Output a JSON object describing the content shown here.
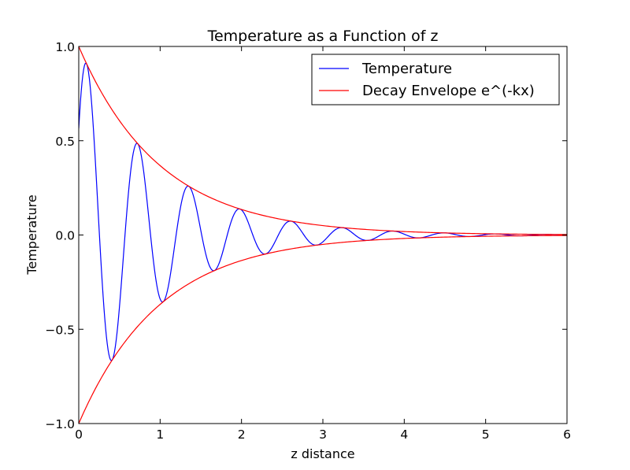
{
  "chart_data": {
    "type": "line",
    "title": "Temperature as a Function of z",
    "xlabel": "z distance",
    "ylabel": "Temperature",
    "xlim": [
      0,
      6
    ],
    "ylim": [
      -1.0,
      1.0
    ],
    "xticks": [
      0,
      1,
      2,
      3,
      4,
      5,
      6
    ],
    "xtick_labels": [
      "0",
      "1",
      "2",
      "3",
      "4",
      "5",
      "6"
    ],
    "yticks": [
      -1.0,
      -0.5,
      0.0,
      0.5,
      1.0
    ],
    "ytick_labels": [
      "−1.0",
      "−0.5",
      "0.0",
      "0.5",
      "1.0"
    ],
    "grid": false,
    "legend_position": "top-right",
    "series": [
      {
        "name": "Temperature",
        "color": "#0000ff",
        "function": "exp(-k*x)*sin(omega*x + phi)",
        "params": {
          "k": 1.0,
          "omega": 10.0,
          "phi": 0.6
        },
        "x_range": [
          0,
          6
        ],
        "samples": 600
      },
      {
        "name": "Decay Envelope e^(-kx)",
        "color": "#ff0000",
        "function": "±exp(-k*x)",
        "params": {
          "k": 1.0
        },
        "x_range": [
          0,
          6
        ],
        "samples": 300
      }
    ]
  }
}
